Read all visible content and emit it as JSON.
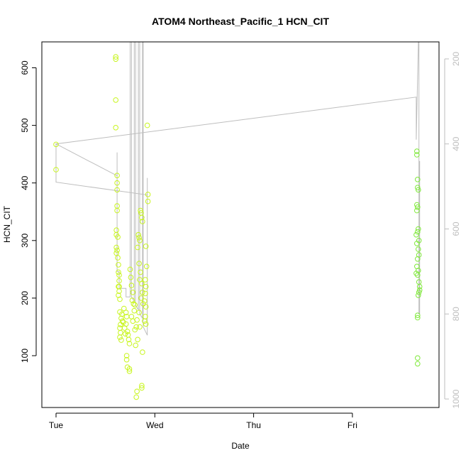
{
  "chart_data": {
    "type": "scatter",
    "title": "ATOM4 Northeast_Pacific_1 HCN_CIT",
    "xlabel": "Date",
    "ylabel": "HCN_CIT",
    "x_ticks": [
      "Tue",
      "Wed",
      "Thu",
      "Fri"
    ],
    "ylim": [
      10,
      645
    ],
    "y_ticks": [
      100,
      200,
      300,
      400,
      500,
      600
    ],
    "y2_ticks": [
      200,
      400,
      600,
      800,
      1000
    ],
    "y2_reversed": true,
    "y2_range": [
      160,
      1020
    ],
    "grid": false,
    "legend": "none",
    "colors": {
      "points": "#c8f51e",
      "points_late": "#7fe93a",
      "line": "#bebebe",
      "axis": "#000000",
      "axis2": "#bebebe"
    },
    "series": [
      {
        "marker": "circle",
        "points": [
          {
            "x": "Tue 00:00",
            "y": 467
          },
          {
            "x": "Tue 00:00",
            "y": 423
          },
          {
            "x": "Tue 14:30",
            "y": 619
          },
          {
            "x": "Tue 14:30",
            "y": 615
          },
          {
            "x": "Tue 14:30",
            "y": 544
          },
          {
            "x": "Tue 14:30",
            "y": 496
          },
          {
            "x": "Tue 14:50",
            "y": 413
          },
          {
            "x": "Tue 14:50",
            "y": 400
          },
          {
            "x": "Tue 14:50",
            "y": 388
          },
          {
            "x": "Tue 14:50",
            "y": 360
          },
          {
            "x": "Tue 14:50",
            "y": 352
          },
          {
            "x": "Tue 14:40",
            "y": 318
          },
          {
            "x": "Tue 14:40",
            "y": 310
          },
          {
            "x": "Tue 15:00",
            "y": 306
          },
          {
            "x": "Tue 14:40",
            "y": 288
          },
          {
            "x": "Tue 14:50",
            "y": 283
          },
          {
            "x": "Tue 14:40",
            "y": 278
          },
          {
            "x": "Tue 15:00",
            "y": 270
          },
          {
            "x": "Tue 15:10",
            "y": 258
          },
          {
            "x": "Tue 15:10",
            "y": 245
          },
          {
            "x": "Tue 15:20",
            "y": 240
          },
          {
            "x": "Tue 15:20",
            "y": 230
          },
          {
            "x": "Tue 15:10",
            "y": 220
          },
          {
            "x": "Tue 15:20",
            "y": 212
          },
          {
            "x": "Tue 15:10",
            "y": 205
          },
          {
            "x": "Tue 15:30",
            "y": 198
          },
          {
            "x": "Tue 15:30",
            "y": 176
          },
          {
            "x": "Tue 15:50",
            "y": 165
          },
          {
            "x": "Tue 15:40",
            "y": 154
          },
          {
            "x": "Tue 15:30",
            "y": 148
          },
          {
            "x": "Tue 15:40",
            "y": 140
          },
          {
            "x": "Tue 15:30",
            "y": 132
          },
          {
            "x": "Tue 15:50",
            "y": 127
          },
          {
            "x": "Tue 16:10",
            "y": 160
          },
          {
            "x": "Tue 16:30",
            "y": 182
          },
          {
            "x": "Tue 17:00",
            "y": 175
          },
          {
            "x": "Tue 17:10",
            "y": 168
          },
          {
            "x": "Tue 17:00",
            "y": 155
          },
          {
            "x": "Tue 17:20",
            "y": 142
          },
          {
            "x": "Tue 17:30",
            "y": 136
          },
          {
            "x": "Tue 17:40",
            "y": 128
          },
          {
            "x": "Tue 17:50",
            "y": 121
          },
          {
            "x": "Tue 16:50",
            "y": 138
          },
          {
            "x": "Tue 17:10",
            "y": 100
          },
          {
            "x": "Tue 17:10",
            "y": 93
          },
          {
            "x": "Tue 17:20",
            "y": 80
          },
          {
            "x": "Tue 17:50",
            "y": 77
          },
          {
            "x": "Tue 17:50",
            "y": 73
          },
          {
            "x": "Tue 18:00",
            "y": 250
          },
          {
            "x": "Tue 18:10",
            "y": 236
          },
          {
            "x": "Tue 18:20",
            "y": 222
          },
          {
            "x": "Tue 18:40",
            "y": 210
          },
          {
            "x": "Tue 18:30",
            "y": 196
          },
          {
            "x": "Tue 18:50",
            "y": 190
          },
          {
            "x": "Tue 19:10",
            "y": 188
          },
          {
            "x": "Tue 19:00",
            "y": 178
          },
          {
            "x": "Tue 18:20",
            "y": 168
          },
          {
            "x": "Tue 18:40",
            "y": 160
          },
          {
            "x": "Tue 19:30",
            "y": 150
          },
          {
            "x": "Tue 19:10",
            "y": 145
          },
          {
            "x": "Tue 19:50",
            "y": 128
          },
          {
            "x": "Tue 19:20",
            "y": 118
          },
          {
            "x": "Tue 20:00",
            "y": 310
          },
          {
            "x": "Tue 20:10",
            "y": 305
          },
          {
            "x": "Tue 20:20",
            "y": 300
          },
          {
            "x": "Tue 19:50",
            "y": 288
          },
          {
            "x": "Tue 20:30",
            "y": 352
          },
          {
            "x": "Tue 20:40",
            "y": 348
          },
          {
            "x": "Tue 20:50",
            "y": 340
          },
          {
            "x": "Tue 21:00",
            "y": 333
          },
          {
            "x": "Tue 20:10",
            "y": 260
          },
          {
            "x": "Tue 20:30",
            "y": 245
          },
          {
            "x": "Tue 20:20",
            "y": 232
          },
          {
            "x": "Tue 20:50",
            "y": 225
          },
          {
            "x": "Tue 21:00",
            "y": 210
          },
          {
            "x": "Tue 20:40",
            "y": 200
          },
          {
            "x": "Tue 21:10",
            "y": 190
          },
          {
            "x": "Tue 20:10",
            "y": 175
          },
          {
            "x": "Tue 19:40",
            "y": 162
          },
          {
            "x": "Tue 20:20",
            "y": 150
          },
          {
            "x": "Tue 21:00",
            "y": 106
          },
          {
            "x": "Tue 19:40",
            "y": 38
          },
          {
            "x": "Tue 19:30",
            "y": 28
          },
          {
            "x": "Tue 20:50",
            "y": 48
          },
          {
            "x": "Tue 20:50",
            "y": 44
          },
          {
            "x": "Tue 22:10",
            "y": 500
          },
          {
            "x": "Tue 22:20",
            "y": 380
          },
          {
            "x": "Tue 22:20",
            "y": 368
          },
          {
            "x": "Tue 21:50",
            "y": 290
          },
          {
            "x": "Tue 22:00",
            "y": 255
          },
          {
            "x": "Tue 21:40",
            "y": 232
          },
          {
            "x": "Tue 21:50",
            "y": 220
          },
          {
            "x": "Tue 21:40",
            "y": 208
          },
          {
            "x": "Tue 21:30",
            "y": 195
          },
          {
            "x": "Tue 21:50",
            "y": 185
          },
          {
            "x": "Tue 21:40",
            "y": 168
          },
          {
            "x": "Tue 21:30",
            "y": 160
          },
          {
            "x": "Tue 21:50",
            "y": 155
          },
          {
            "x": "Tue 15:20",
            "y": 220
          },
          {
            "x": "Tue 16:00",
            "y": 172
          },
          {
            "x": "Tue 16:20",
            "y": 158
          },
          {
            "x": "Tue 16:40",
            "y": 148
          }
        ]
      },
      {
        "marker": "circle",
        "points": [
          {
            "x": "Fri 15:40",
            "y": 455
          },
          {
            "x": "Fri 15:40",
            "y": 449
          },
          {
            "x": "Fri 15:50",
            "y": 406
          },
          {
            "x": "Fri 15:50",
            "y": 392
          },
          {
            "x": "Fri 16:00",
            "y": 388
          },
          {
            "x": "Fri 15:40",
            "y": 362
          },
          {
            "x": "Fri 15:50",
            "y": 358
          },
          {
            "x": "Fri 15:40",
            "y": 352
          },
          {
            "x": "Fri 16:00",
            "y": 320
          },
          {
            "x": "Fri 15:50",
            "y": 315
          },
          {
            "x": "Fri 15:30",
            "y": 310
          },
          {
            "x": "Fri 16:10",
            "y": 300
          },
          {
            "x": "Fri 15:40",
            "y": 295
          },
          {
            "x": "Fri 16:00",
            "y": 285
          },
          {
            "x": "Fri 16:10",
            "y": 275
          },
          {
            "x": "Fri 15:50",
            "y": 268
          },
          {
            "x": "Fri 15:40",
            "y": 255
          },
          {
            "x": "Fri 16:00",
            "y": 248
          },
          {
            "x": "Fri 15:30",
            "y": 243
          },
          {
            "x": "Fri 15:50",
            "y": 240
          },
          {
            "x": "Fri 16:10",
            "y": 228
          },
          {
            "x": "Fri 16:20",
            "y": 220
          },
          {
            "x": "Fri 16:20",
            "y": 214
          },
          {
            "x": "Fri 16:10",
            "y": 210
          },
          {
            "x": "Fri 16:00",
            "y": 205
          },
          {
            "x": "Fri 15:50",
            "y": 170
          },
          {
            "x": "Fri 15:50",
            "y": 166
          },
          {
            "x": "Fri 15:50",
            "y": 96
          },
          {
            "x": "Fri 15:50",
            "y": 86
          }
        ]
      }
    ],
    "pressure_line": [
      {
        "x": "Tue 00:00",
        "p": 400
      },
      {
        "x": "Tue 00:00",
        "p": 490
      },
      {
        "x": "Tue 22:10",
        "p": 520
      },
      {
        "x": "Tue 22:10",
        "p": 480
      },
      {
        "x": "Tue 22:10",
        "p": 850
      },
      {
        "x": "Tue 21:10",
        "p": 830
      },
      {
        "x": "Tue 21:10",
        "p": 100
      },
      {
        "x": "Tue 21:00",
        "p": 100
      },
      {
        "x": "Tue 21:00",
        "p": 810
      },
      {
        "x": "Tue 20:20",
        "p": 800
      },
      {
        "x": "Tue 20:20",
        "p": 100
      },
      {
        "x": "Tue 20:00",
        "p": 100
      },
      {
        "x": "Tue 20:00",
        "p": 790
      },
      {
        "x": "Tue 19:20",
        "p": 780
      },
      {
        "x": "Tue 19:20",
        "p": 100
      },
      {
        "x": "Tue 19:00",
        "p": 100
      },
      {
        "x": "Tue 19:00",
        "p": 770
      },
      {
        "x": "Tue 18:20",
        "p": 760
      },
      {
        "x": "Tue 18:20",
        "p": 100
      },
      {
        "x": "Tue 18:00",
        "p": 100
      },
      {
        "x": "Tue 18:00",
        "p": 760
      },
      {
        "x": "Tue 17:00",
        "p": 760
      },
      {
        "x": "Tue 17:00",
        "p": 740
      },
      {
        "x": "Tue 15:20",
        "p": 740
      },
      {
        "x": "Tue 15:20",
        "p": 700
      },
      {
        "x": "Tue 14:50",
        "p": 700
      },
      {
        "x": "Tue 14:50",
        "p": 420
      },
      {
        "x": "Tue 14:50",
        "p": 475
      },
      {
        "x": "Tue 00:00",
        "p": 400
      },
      {
        "x": "Fri 15:30",
        "p": 290
      },
      {
        "x": "Fri 15:30",
        "p": 390
      },
      {
        "x": "Fri 16:10",
        "p": 100
      },
      {
        "x": "Fri 16:10",
        "p": 800
      },
      {
        "x": "Fri 16:20",
        "p": 800
      },
      {
        "x": "Fri 16:20",
        "p": 440
      }
    ]
  }
}
